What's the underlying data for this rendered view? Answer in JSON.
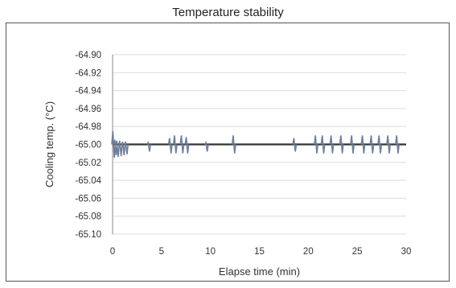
{
  "chart_data": {
    "type": "line",
    "title": "Temperature stability",
    "xlabel": "Elapse time (min)",
    "ylabel": "Cooling temp. (°C)",
    "xlim": [
      0,
      30
    ],
    "ylim": [
      -65.1,
      -64.9
    ],
    "x_ticks": [
      "0",
      "5",
      "10",
      "15",
      "20",
      "25",
      "30"
    ],
    "y_ticks": [
      "-64.90",
      "-64.92",
      "-64.94",
      "-64.96",
      "-64.98",
      "-65.00",
      "-65.02",
      "-65.04",
      "-65.06",
      "-65.08",
      "-65.10"
    ],
    "grid": "horizontal",
    "series": [
      {
        "baseline": -65.0,
        "color": "#6d7f99",
        "spikes": [
          {
            "x": 0.1,
            "min": -65.015,
            "max": -64.985
          },
          {
            "x": 0.3,
            "min": -65.012,
            "max": -64.995
          },
          {
            "x": 0.5,
            "min": -65.014,
            "max": -64.996
          },
          {
            "x": 0.8,
            "min": -65.013,
            "max": -64.996
          },
          {
            "x": 1.1,
            "min": -65.012,
            "max": -64.997
          },
          {
            "x": 1.4,
            "min": -65.011,
            "max": -64.997
          },
          {
            "x": 3.7,
            "min": -65.008,
            "max": -64.998
          },
          {
            "x": 5.9,
            "min": -65.01,
            "max": -64.993
          },
          {
            "x": 6.4,
            "min": -65.01,
            "max": -64.99
          },
          {
            "x": 7.1,
            "min": -65.01,
            "max": -64.99
          },
          {
            "x": 7.6,
            "min": -65.01,
            "max": -64.992
          },
          {
            "x": 9.6,
            "min": -65.008,
            "max": -64.998
          },
          {
            "x": 12.4,
            "min": -65.01,
            "max": -64.99
          },
          {
            "x": 18.6,
            "min": -65.008,
            "max": -64.993
          },
          {
            "x": 20.8,
            "min": -65.01,
            "max": -64.99
          },
          {
            "x": 21.5,
            "min": -65.01,
            "max": -64.99
          },
          {
            "x": 22.4,
            "min": -65.01,
            "max": -64.99
          },
          {
            "x": 23.4,
            "min": -65.01,
            "max": -64.99
          },
          {
            "x": 24.5,
            "min": -65.01,
            "max": -64.99
          },
          {
            "x": 25.6,
            "min": -65.01,
            "max": -64.99
          },
          {
            "x": 26.5,
            "min": -65.01,
            "max": -64.99
          },
          {
            "x": 27.3,
            "min": -65.01,
            "max": -64.99
          },
          {
            "x": 28.2,
            "min": -65.01,
            "max": -64.99
          },
          {
            "x": 29.1,
            "min": -65.01,
            "max": -64.99
          }
        ]
      }
    ]
  }
}
